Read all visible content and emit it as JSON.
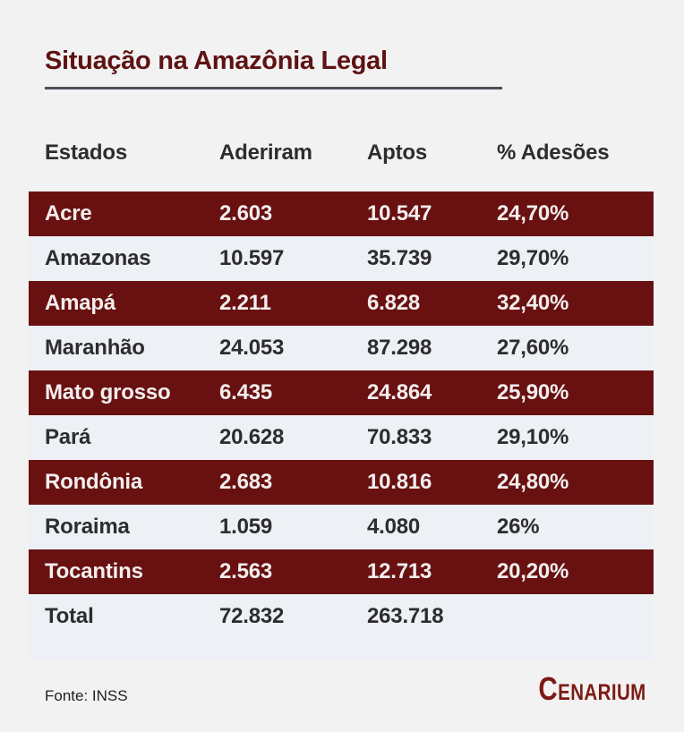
{
  "page": {
    "background": "#f2f2f2"
  },
  "header": {
    "title": "Situação na Amazônia Legal"
  },
  "chart_data": {
    "type": "table",
    "title": "Situação na Amazônia Legal",
    "columns": [
      "Estados",
      "Aderiram",
      "Aptos",
      "% Adesões"
    ],
    "rows": [
      [
        "Acre",
        "2.603",
        "10.547",
        "24,70%"
      ],
      [
        "Amazonas",
        "10.597",
        "35.739",
        "29,70%"
      ],
      [
        "Amapá",
        "2.211",
        "6.828",
        "32,40%"
      ],
      [
        "Maranhão",
        "24.053",
        "87.298",
        "27,60%"
      ],
      [
        "Mato grosso",
        "6.435",
        "24.864",
        "25,90%"
      ],
      [
        "Pará",
        "20.628",
        "70.833",
        "29,10%"
      ],
      [
        "Rondônia",
        "2.683",
        "10.816",
        "24,80%"
      ],
      [
        "Roraima",
        "1.059",
        "4.080",
        "26%"
      ],
      [
        "Tocantins",
        "2.563",
        "12.713",
        "20,20%"
      ],
      [
        "Total",
        "72.832",
        "263.718",
        ""
      ]
    ],
    "row_style": "alternating rows highlighted dark red starting with first data row",
    "source": "Fonte: INSS"
  },
  "footer": {
    "source_label": "Fonte: INSS",
    "brand_initial": "C",
    "brand_rest": "ENARIUM"
  },
  "colors": {
    "page_bg": "#f2f2f2",
    "table_bg": "#edf0f4",
    "accent_red": "#691111",
    "title_red": "#5e1212",
    "underline": "#4b515a",
    "dark_text": "#2d2d2d",
    "light_text": "#f3eeee",
    "logo_red": "#7c1a14"
  }
}
